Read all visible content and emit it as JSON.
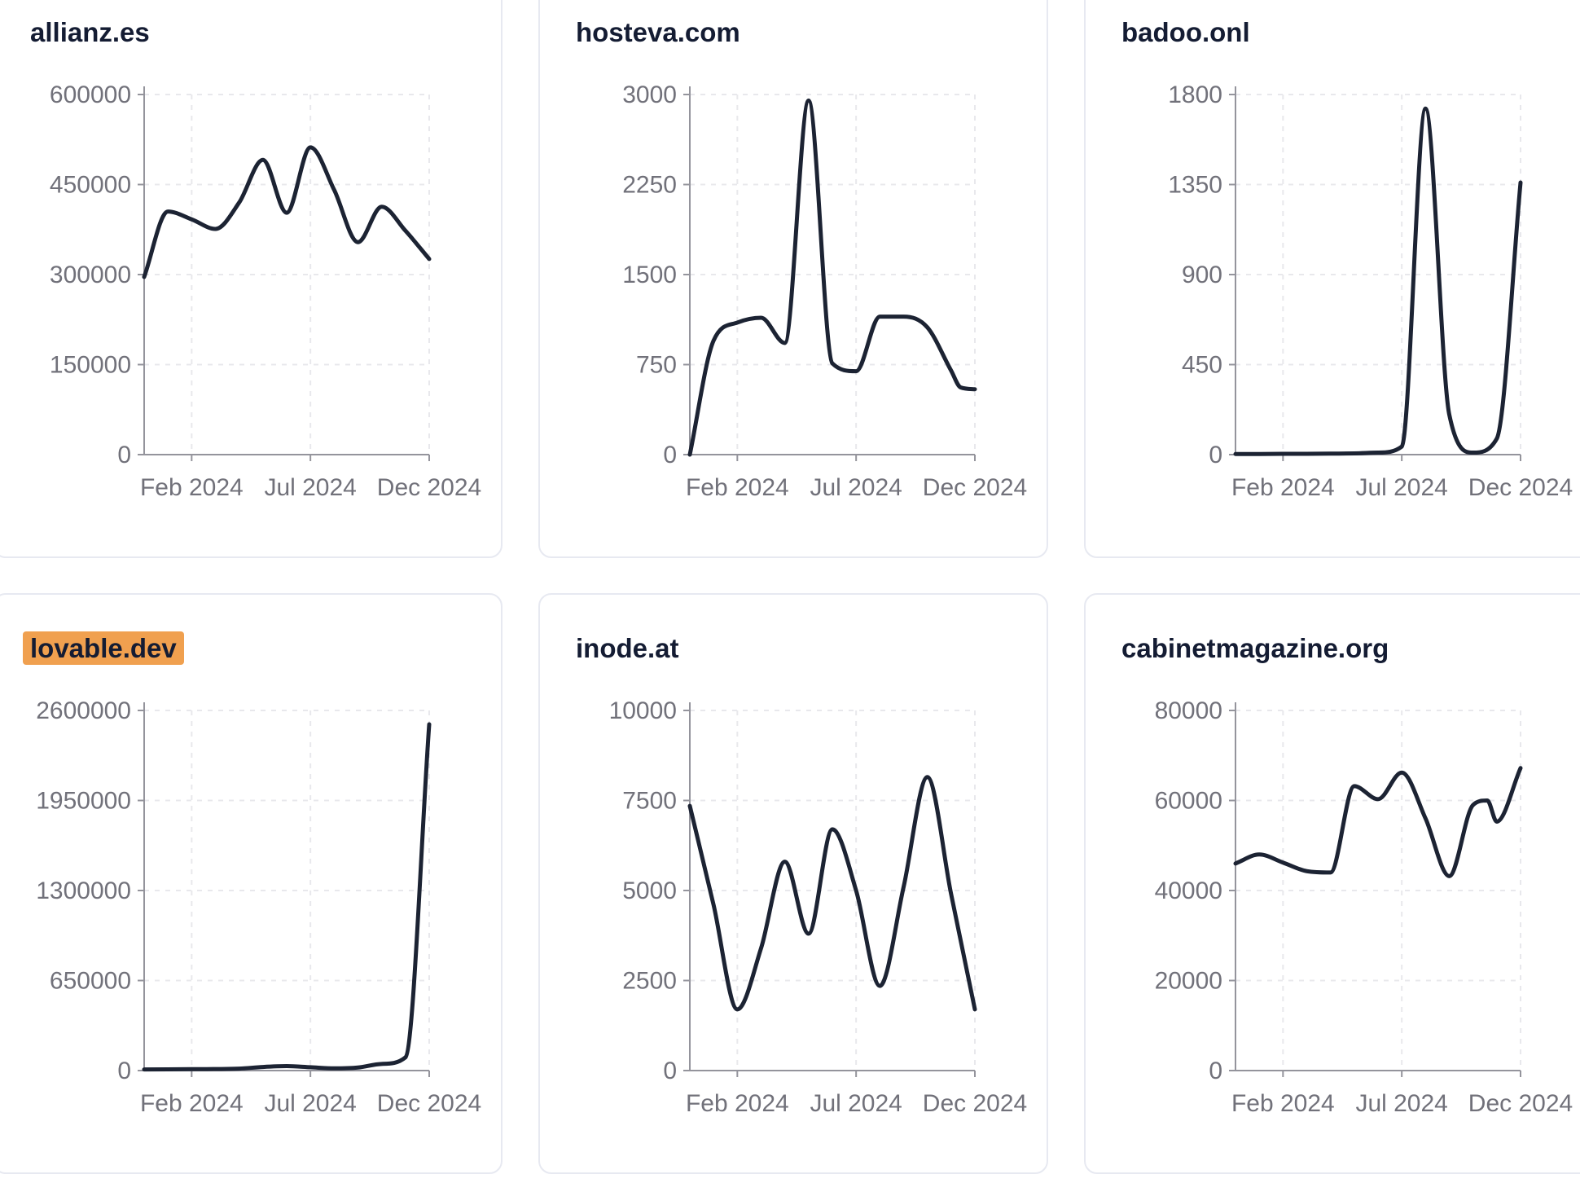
{
  "colors": {
    "line": "#1c2333",
    "title_text": "#141c33",
    "tick_label": "#71717a",
    "axis": "#94949c",
    "gridline": "#e8e8ec",
    "card_border": "#e7e9f1",
    "card_background": "#ffffff",
    "page_background": "#ffffff",
    "highlight": "#f0a04f"
  },
  "chart_data": [
    {
      "type": "line",
      "title": "allianz.es",
      "highlighted": false,
      "x_unit": "months_since_dec_2023",
      "x": [
        0,
        1,
        2,
        3,
        4,
        5,
        6,
        7,
        8,
        9,
        10,
        11,
        12
      ],
      "values": [
        296000,
        405000,
        392000,
        376000,
        420000,
        491000,
        403000,
        512000,
        441000,
        354000,
        413000,
        373000,
        326000
      ],
      "ylim": [
        0,
        600000
      ],
      "y_ticks": [
        0,
        150000,
        300000,
        450000,
        600000
      ],
      "x_ticks": {
        "positions": [
          2,
          7,
          12
        ],
        "labels": [
          "Feb 2024",
          "Jul 2024",
          "Dec 2024"
        ]
      },
      "grid": "dashed",
      "legend": "none"
    },
    {
      "type": "line",
      "title": "hosteva.com",
      "highlighted": false,
      "x_unit": "months_since_dec_2023",
      "x": [
        0,
        1,
        2,
        3,
        4,
        5,
        6,
        7,
        8,
        9,
        10,
        11,
        11.4,
        12
      ],
      "values": [
        0,
        950,
        1100,
        1140,
        930,
        2950,
        760,
        695,
        1150,
        1150,
        1060,
        700,
        560,
        545
      ],
      "ylim": [
        0,
        3000
      ],
      "y_ticks": [
        0,
        750,
        1500,
        2250,
        3000
      ],
      "x_ticks": {
        "positions": [
          2,
          7,
          12
        ],
        "labels": [
          "Feb 2024",
          "Jul 2024",
          "Dec 2024"
        ]
      },
      "grid": "dashed",
      "legend": "none"
    },
    {
      "type": "line",
      "title": "badoo.onl",
      "highlighted": false,
      "x_unit": "months_since_dec_2023",
      "x": [
        0,
        1,
        2,
        3,
        4,
        5,
        6,
        7,
        8,
        9,
        10,
        11,
        12
      ],
      "values": [
        3,
        3,
        4,
        4,
        5,
        6,
        10,
        40,
        1730,
        200,
        10,
        80,
        1360
      ],
      "ylim": [
        0,
        1800
      ],
      "y_ticks": [
        0,
        450,
        900,
        1350,
        1800
      ],
      "x_ticks": {
        "positions": [
          2,
          7,
          12
        ],
        "labels": [
          "Feb 2024",
          "Jul 2024",
          "Dec 2024"
        ]
      },
      "grid": "dashed",
      "legend": "none"
    },
    {
      "type": "line",
      "title": "lovable.dev",
      "highlighted": true,
      "x_unit": "months_since_dec_2023",
      "x": [
        0,
        1,
        2,
        3,
        4,
        5,
        6,
        7,
        8,
        9,
        10,
        11,
        12
      ],
      "values": [
        8000,
        9000,
        10000,
        11000,
        14000,
        26000,
        32000,
        24000,
        16000,
        22000,
        48000,
        95000,
        2500000
      ],
      "ylim": [
        0,
        2600000
      ],
      "y_ticks": [
        0,
        650000,
        1300000,
        1950000,
        2600000
      ],
      "x_ticks": {
        "positions": [
          2,
          7,
          12
        ],
        "labels": [
          "Feb 2024",
          "Jul 2024",
          "Dec 2024"
        ]
      },
      "grid": "dashed",
      "legend": "none"
    },
    {
      "type": "line",
      "title": "inode.at",
      "highlighted": false,
      "x_unit": "months_since_dec_2023",
      "x": [
        0,
        1,
        2,
        3,
        4,
        5,
        6,
        7,
        8,
        9,
        10,
        11,
        12
      ],
      "values": [
        7350,
        4600,
        1700,
        3400,
        5800,
        3800,
        6700,
        5000,
        2350,
        5100,
        8150,
        4900,
        1700
      ],
      "ylim": [
        0,
        10000
      ],
      "y_ticks": [
        0,
        2500,
        5000,
        7500,
        10000
      ],
      "x_ticks": {
        "positions": [
          2,
          7,
          12
        ],
        "labels": [
          "Feb 2024",
          "Jul 2024",
          "Dec 2024"
        ]
      },
      "grid": "dashed",
      "legend": "none"
    },
    {
      "type": "line",
      "title": "cabinetmagazine.org",
      "highlighted": false,
      "x_unit": "months_since_dec_2023",
      "x": [
        0,
        1,
        2,
        3,
        4,
        5,
        6,
        7,
        8,
        9,
        10,
        10.6,
        11,
        12
      ],
      "values": [
        46000,
        48000,
        46200,
        44300,
        44000,
        63200,
        60300,
        66200,
        56000,
        43200,
        59000,
        60000,
        55300,
        67200
      ],
      "ylim": [
        0,
        80000
      ],
      "y_ticks": [
        0,
        20000,
        40000,
        60000,
        80000
      ],
      "x_ticks": {
        "positions": [
          2,
          7,
          12
        ],
        "labels": [
          "Feb 2024",
          "Jul 2024",
          "Dec 2024"
        ]
      },
      "grid": "dashed",
      "legend": "none"
    }
  ]
}
